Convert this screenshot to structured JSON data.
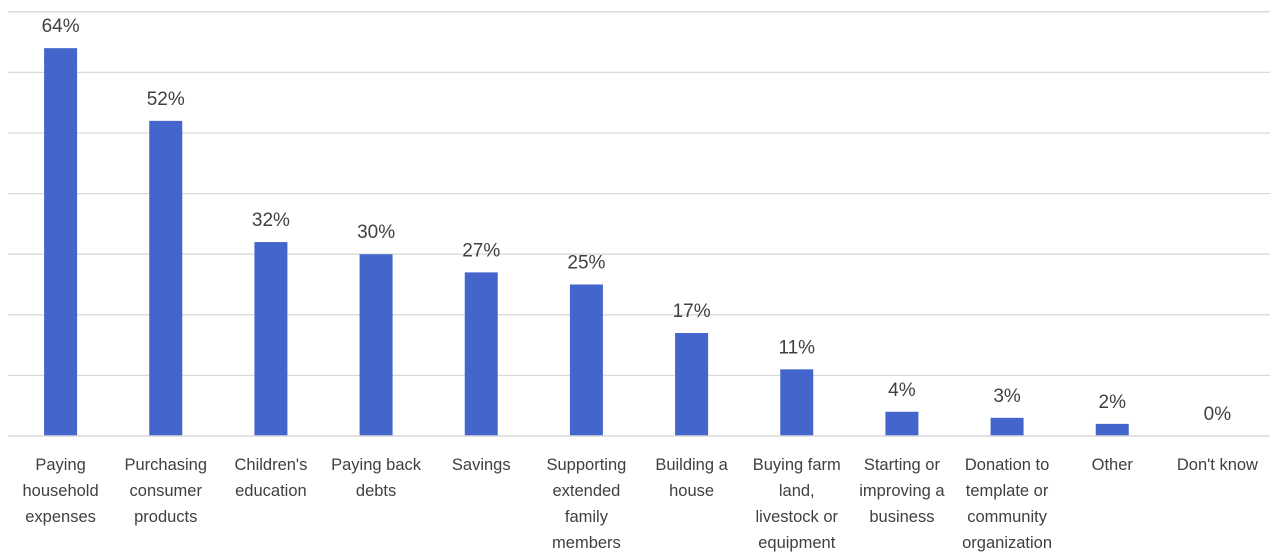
{
  "chart_data": {
    "type": "bar",
    "categories": [
      "Paying household expenses",
      "Purchasing consumer products",
      "Children's education",
      "Paying back debts",
      "Savings",
      "Supporting extended family members",
      "Building a house",
      "Buying farm land, livestock or equipment",
      "Starting or improving a business",
      "Donation to template or community organization",
      "Other",
      "Don't know"
    ],
    "category_lines": [
      [
        "Paying",
        "household",
        "expenses"
      ],
      [
        "Purchasing",
        "consumer",
        "products"
      ],
      [
        "Children's",
        "education"
      ],
      [
        "Paying back",
        "debts"
      ],
      [
        "Savings"
      ],
      [
        "Supporting",
        "extended",
        "family",
        "members"
      ],
      [
        "Building a",
        "house"
      ],
      [
        "Buying farm",
        "land,",
        "livestock or",
        "equipment"
      ],
      [
        "Starting or",
        "improving a",
        "business"
      ],
      [
        "Donation to",
        "template or",
        "community",
        "organization"
      ],
      [
        "Other"
      ],
      [
        "Don't know"
      ]
    ],
    "values": [
      64,
      52,
      32,
      30,
      27,
      25,
      17,
      11,
      4,
      3,
      2,
      0
    ],
    "data_labels": [
      "64%",
      "52%",
      "32%",
      "30%",
      "27%",
      "25%",
      "17%",
      "11%",
      "4%",
      "3%",
      "2%",
      "0%"
    ],
    "title": "",
    "xlabel": "",
    "ylabel": "",
    "ylim": [
      0,
      70
    ],
    "ytick_step": 10,
    "grid": true,
    "legend": "none",
    "bar_color": "#4466CC"
  }
}
